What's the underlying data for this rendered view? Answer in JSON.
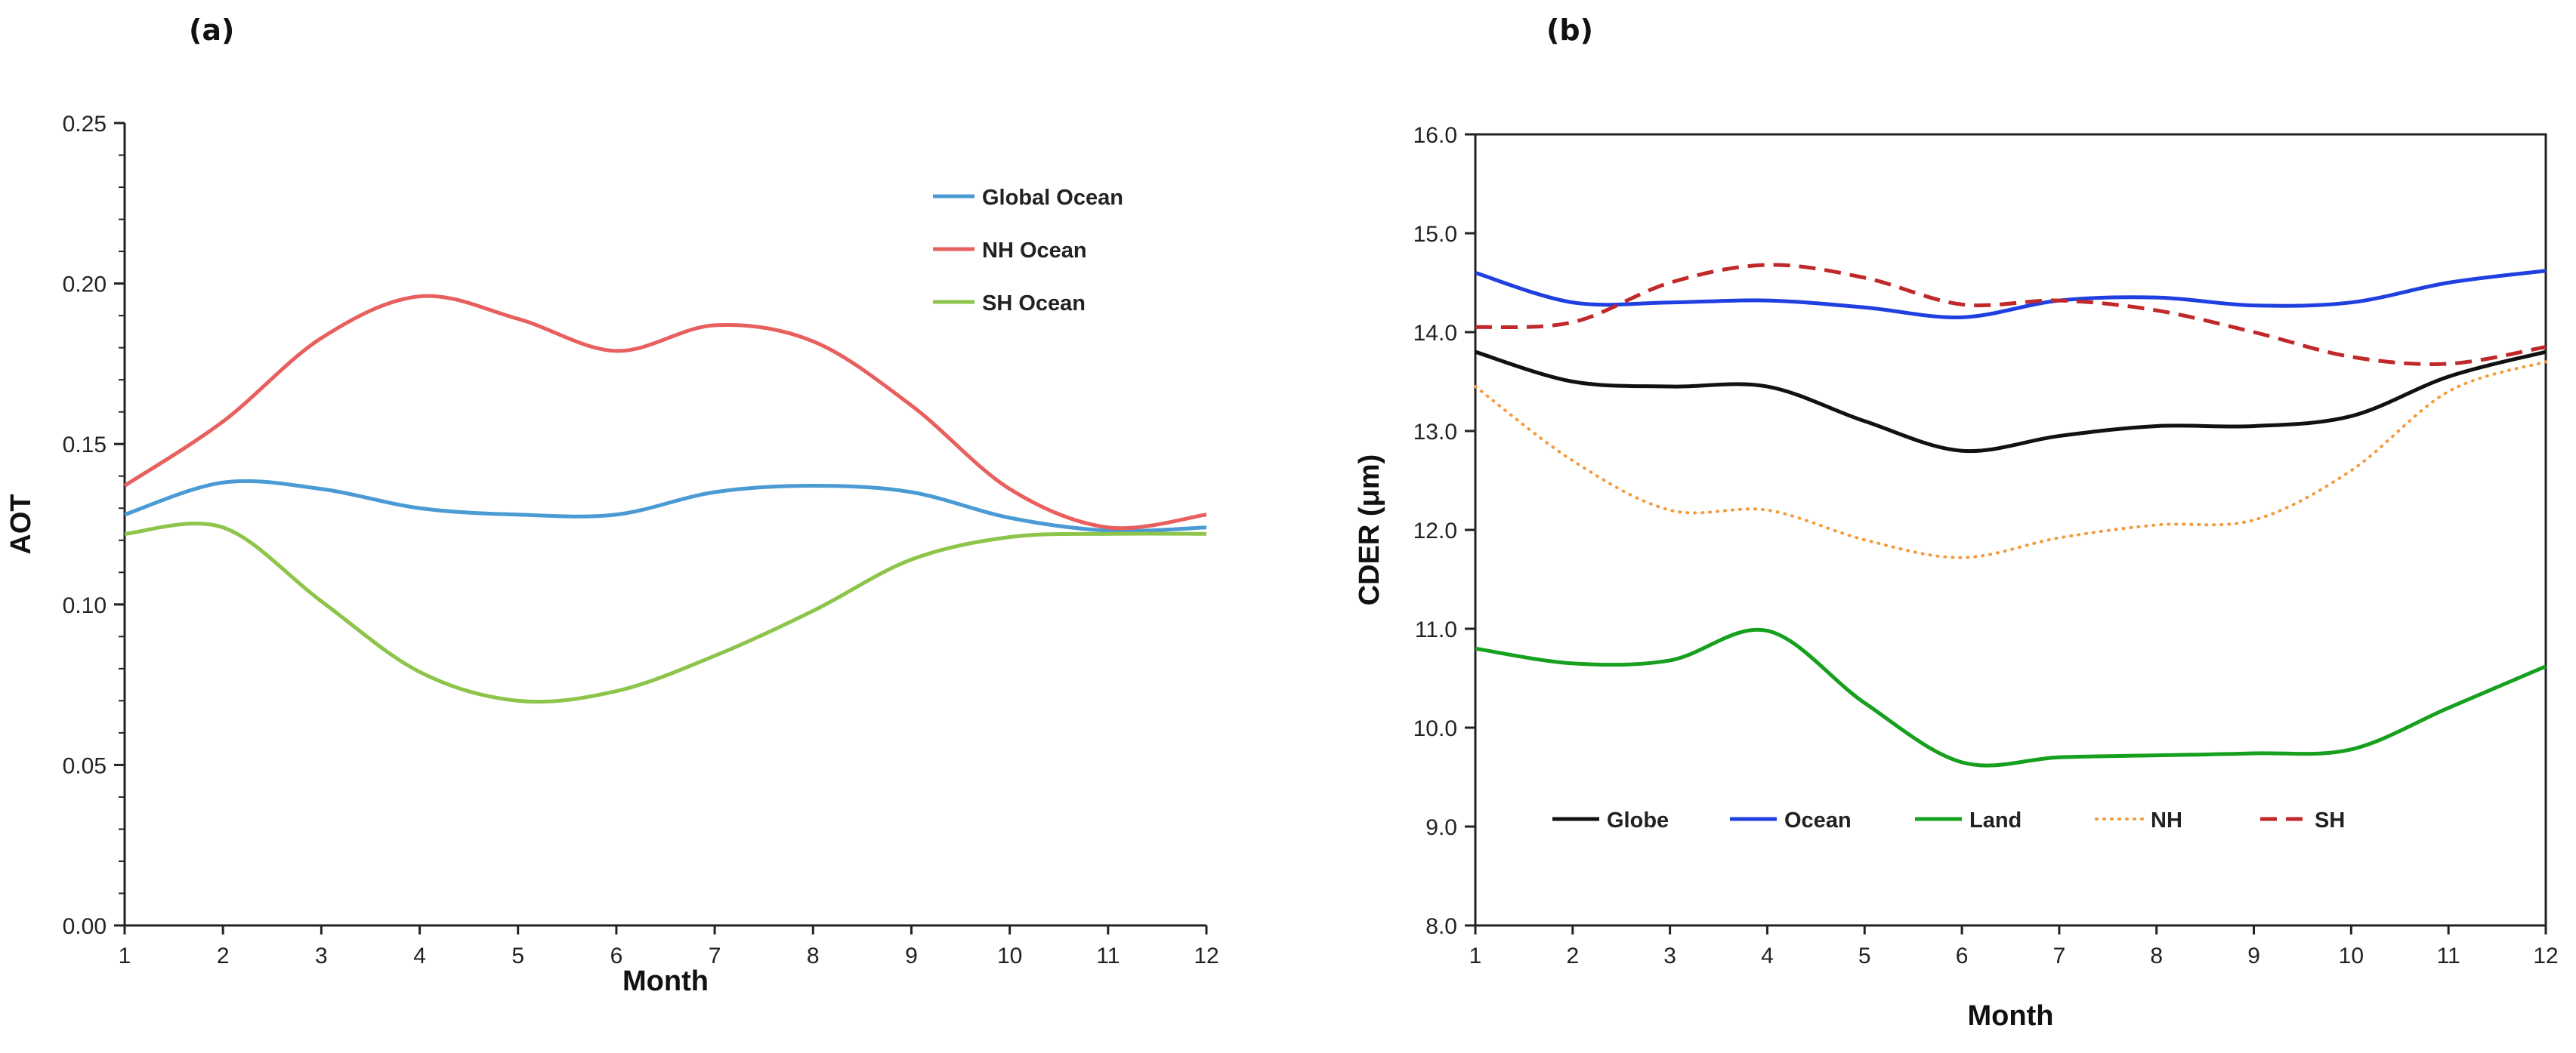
{
  "chart_data": [
    {
      "panel_label": "(a)",
      "type": "line",
      "xlabel": "Month",
      "ylabel": "AOT",
      "x": [
        1,
        2,
        3,
        4,
        5,
        6,
        7,
        8,
        9,
        10,
        11,
        12
      ],
      "xlim": [
        1,
        12
      ],
      "ylim": [
        0,
        0.25
      ],
      "yticks": [
        "0.00",
        "0.05",
        "0.10",
        "0.15",
        "0.20",
        "0.25"
      ],
      "xticks": [
        "1",
        "2",
        "3",
        "4",
        "5",
        "6",
        "7",
        "8",
        "9",
        "10",
        "11",
        "12"
      ],
      "legend_position": "top-right",
      "grid": false,
      "series": [
        {
          "name": "Global Ocean",
          "color": "#4a9bd4",
          "dash": "solid",
          "values": [
            0.128,
            0.138,
            0.136,
            0.13,
            0.128,
            0.128,
            0.135,
            0.137,
            0.135,
            0.127,
            0.123,
            0.124
          ]
        },
        {
          "name": "NH Ocean",
          "color": "#e8605e",
          "dash": "solid",
          "values": [
            0.137,
            0.157,
            0.183,
            0.196,
            0.189,
            0.179,
            0.187,
            0.182,
            0.162,
            0.136,
            0.124,
            0.128
          ]
        },
        {
          "name": "SH Ocean",
          "color": "#8dc44a",
          "dash": "solid",
          "values": [
            0.122,
            0.124,
            0.101,
            0.079,
            0.07,
            0.073,
            0.084,
            0.098,
            0.114,
            0.121,
            0.122,
            0.122
          ]
        }
      ]
    },
    {
      "panel_label": "(b)",
      "type": "line",
      "xlabel": "Month",
      "ylabel": "CDER (μm)",
      "x": [
        1,
        2,
        3,
        4,
        5,
        6,
        7,
        8,
        9,
        10,
        11,
        12
      ],
      "xlim": [
        1,
        12
      ],
      "ylim": [
        8.0,
        16.0
      ],
      "yticks": [
        "8.0",
        "9.0",
        "10.0",
        "11.0",
        "12.0",
        "13.0",
        "14.0",
        "15.0",
        "16.0"
      ],
      "xticks": [
        "1",
        "2",
        "3",
        "4",
        "5",
        "6",
        "7",
        "8",
        "9",
        "10",
        "11",
        "12"
      ],
      "legend_position": "bottom-left",
      "grid": false,
      "series": [
        {
          "name": "Globe",
          "color": "#111111",
          "dash": "solid",
          "values": [
            13.8,
            13.5,
            13.45,
            13.45,
            13.1,
            12.8,
            12.95,
            13.05,
            13.05,
            13.15,
            13.55,
            13.8
          ]
        },
        {
          "name": "Ocean",
          "color": "#1f3fe0",
          "dash": "solid",
          "values": [
            14.6,
            14.3,
            14.3,
            14.32,
            14.25,
            14.15,
            14.32,
            14.35,
            14.27,
            14.3,
            14.5,
            14.62
          ]
        },
        {
          "name": "Land",
          "color": "#16a01e",
          "dash": "solid",
          "values": [
            10.8,
            10.65,
            10.68,
            10.98,
            10.25,
            9.65,
            9.7,
            9.72,
            9.74,
            9.78,
            10.2,
            10.62
          ]
        },
        {
          "name": "NH",
          "color": "#f59a3a",
          "dash": "dotted",
          "values": [
            13.45,
            12.7,
            12.2,
            12.2,
            11.9,
            11.72,
            11.92,
            12.05,
            12.1,
            12.6,
            13.4,
            13.7
          ]
        },
        {
          "name": "SH",
          "color": "#c0282a",
          "dash": "dashed",
          "values": [
            14.05,
            14.1,
            14.5,
            14.68,
            14.55,
            14.28,
            14.32,
            14.22,
            14.0,
            13.75,
            13.68,
            13.85
          ]
        }
      ]
    }
  ]
}
